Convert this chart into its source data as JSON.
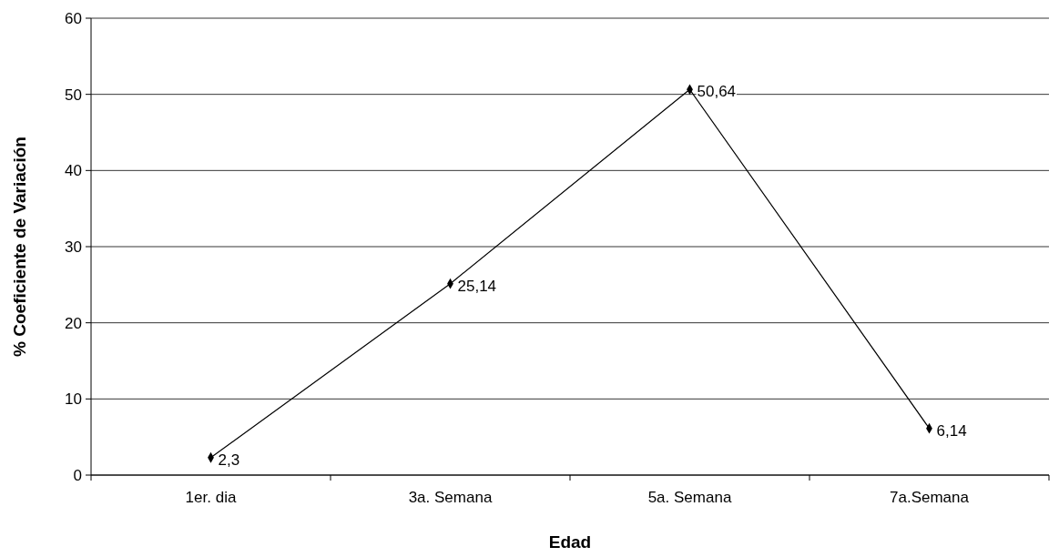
{
  "chart_data": {
    "type": "line",
    "xlabel": "Edad",
    "ylabel": "% Coeficiente de Variación",
    "categories": [
      "1er. dia",
      "3a. Semana",
      "5a. Semana",
      "7a.Semana"
    ],
    "series": [
      {
        "color": "#000000",
        "values": [
          2.3,
          25.14,
          50.64,
          6.14
        ],
        "value_labels": [
          "2,3",
          "25,14",
          "50,64",
          "6,14"
        ]
      }
    ],
    "ylim": [
      0,
      60
    ],
    "yticks": [
      0,
      10,
      20,
      30,
      40,
      50,
      60
    ],
    "grid": "y",
    "marker": "diamond",
    "line_style": "solid"
  }
}
